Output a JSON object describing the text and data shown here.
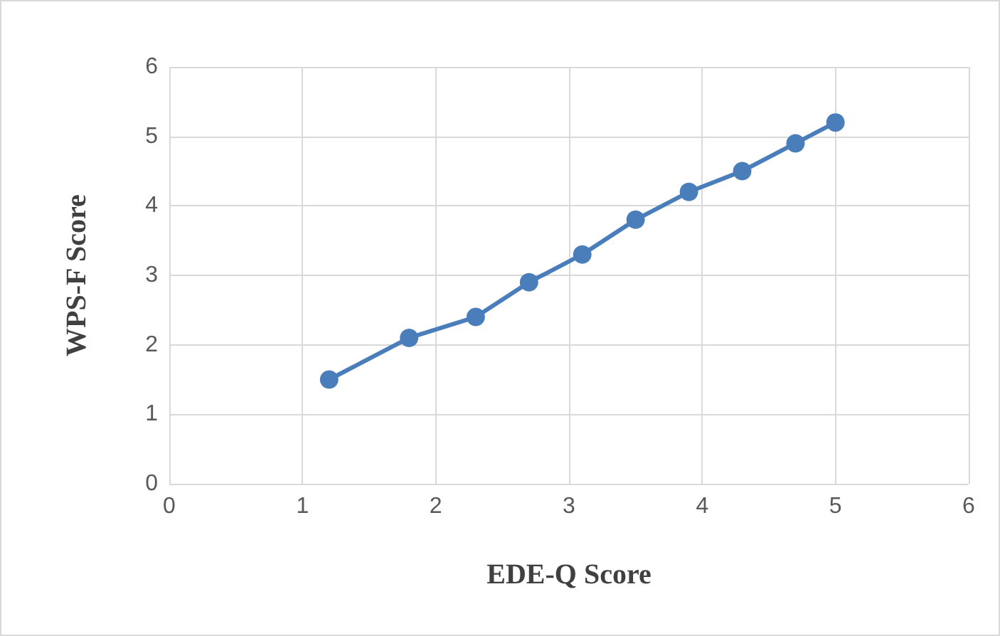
{
  "chart_data": {
    "type": "line",
    "xlabel": "EDE-Q Score",
    "ylabel": "WPS-F Score",
    "x": [
      1.2,
      1.8,
      2.3,
      2.7,
      3.1,
      3.5,
      3.9,
      4.3,
      4.7,
      5.0
    ],
    "series": [
      {
        "color": "#4a7ebb",
        "values": [
          1.5,
          2.1,
          2.4,
          2.9,
          3.3,
          3.8,
          4.2,
          4.5,
          4.9,
          5.2
        ]
      }
    ],
    "xlim": [
      0,
      6
    ],
    "xticks": [
      0,
      1,
      2,
      3,
      4,
      5,
      6
    ],
    "ylim": [
      0,
      6
    ],
    "yticks": [
      0,
      1,
      2,
      3,
      4,
      5,
      6
    ],
    "grid": true,
    "marker": "circle",
    "line_style": "solid"
  }
}
